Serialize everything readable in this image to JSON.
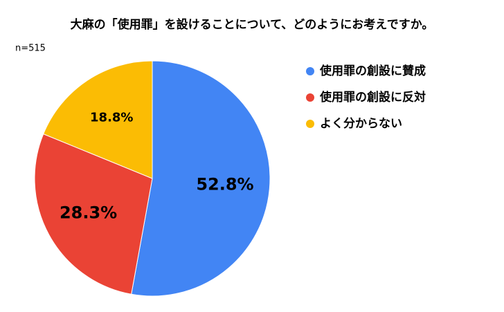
{
  "chart_data": {
    "type": "pie",
    "title": "大麻の「使用罪」を設けることについて、どのようにお考えですか。",
    "subtitle": "n=515",
    "categories": [
      "使用罪の創設に賛成",
      "使用罪の創設に反対",
      "よく分からない"
    ],
    "values": [
      52.8,
      28.3,
      18.8
    ],
    "value_labels": [
      "52.8%",
      "28.3%",
      "18.8%"
    ],
    "colors": [
      "#4285f4",
      "#ea4335",
      "#fbbc04"
    ],
    "legend": "right"
  }
}
